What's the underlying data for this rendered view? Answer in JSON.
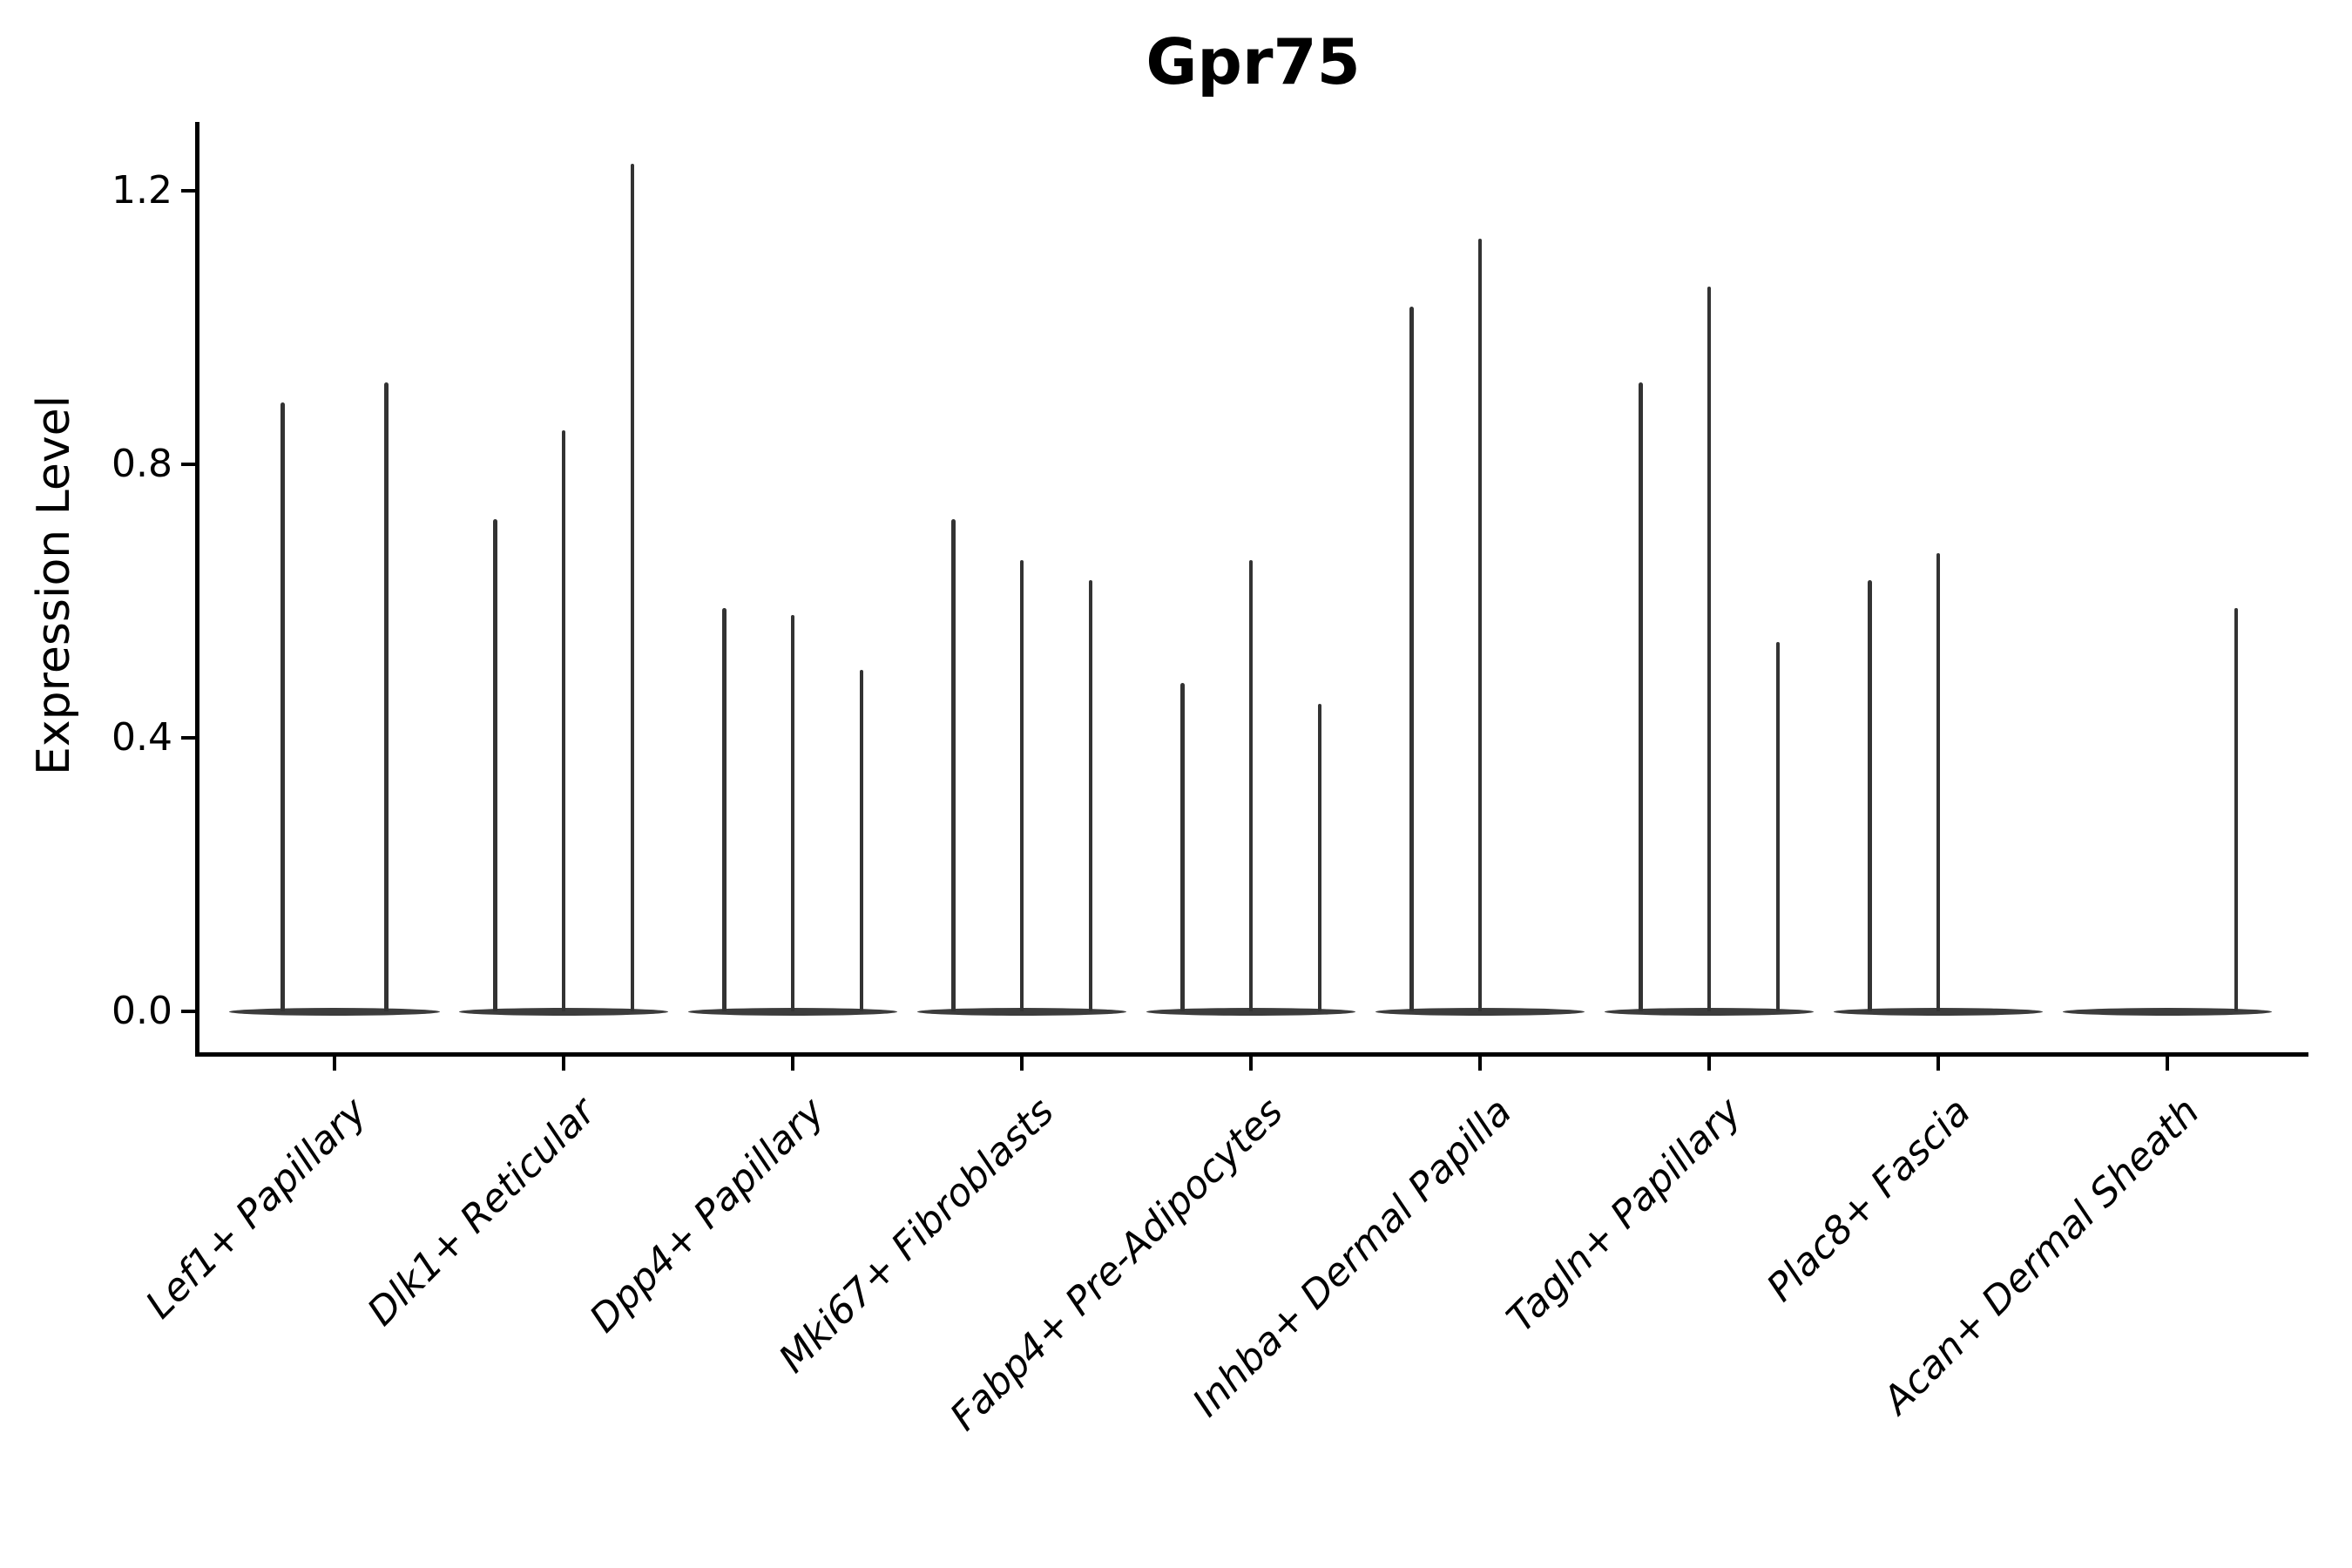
{
  "title": "Gpr75",
  "colors": {
    "axis": "#000000",
    "text": "#000000",
    "violin_body": "#3c3c3c",
    "violin_spike": "#333333",
    "background": "#ffffff"
  },
  "chart_data": {
    "type": "violin",
    "title": "Gpr75",
    "xlabel": "",
    "ylabel": "Expression Level",
    "ylim": [
      0,
      1.3
    ],
    "yticks": [
      0.0,
      0.4,
      0.8,
      1.2
    ],
    "ytick_labels": [
      "0.0",
      "0.4",
      "0.8",
      "1.2"
    ],
    "grid": false,
    "legend_position": "none",
    "xtick_rotation_deg": 45,
    "categories": [
      "Lef1+ Papillary",
      "Dlk1+ Reticular",
      "Dpp4+ Papillary",
      "Mki67+ Fibroblasts",
      "Fabp4+ Pre-Adipocytes",
      "Inhba+ Dermal Papilla",
      "Tagln+ Papillary",
      "Plac8+ Fascia",
      "Acan+ Dermal Sheath"
    ],
    "description": "Violin plot of Gpr75 expression; each category shows narrow violins that are flat at 0 with thin spikes reaching the listed maximum expression values (0 = fully flat violin with no spike).",
    "violin_max_expression": [
      [
        0.89,
        0.92
      ],
      [
        0.72,
        0.85,
        1.24
      ],
      [
        0.59,
        0.58,
        0.5
      ],
      [
        0.72,
        0.66,
        0.63
      ],
      [
        0.48,
        0.66,
        0.45
      ],
      [
        1.03,
        1.13,
        0
      ],
      [
        0.92,
        1.06,
        0.54
      ],
      [
        0.63,
        0.67,
        0
      ],
      [
        0,
        0,
        0.59
      ]
    ]
  }
}
